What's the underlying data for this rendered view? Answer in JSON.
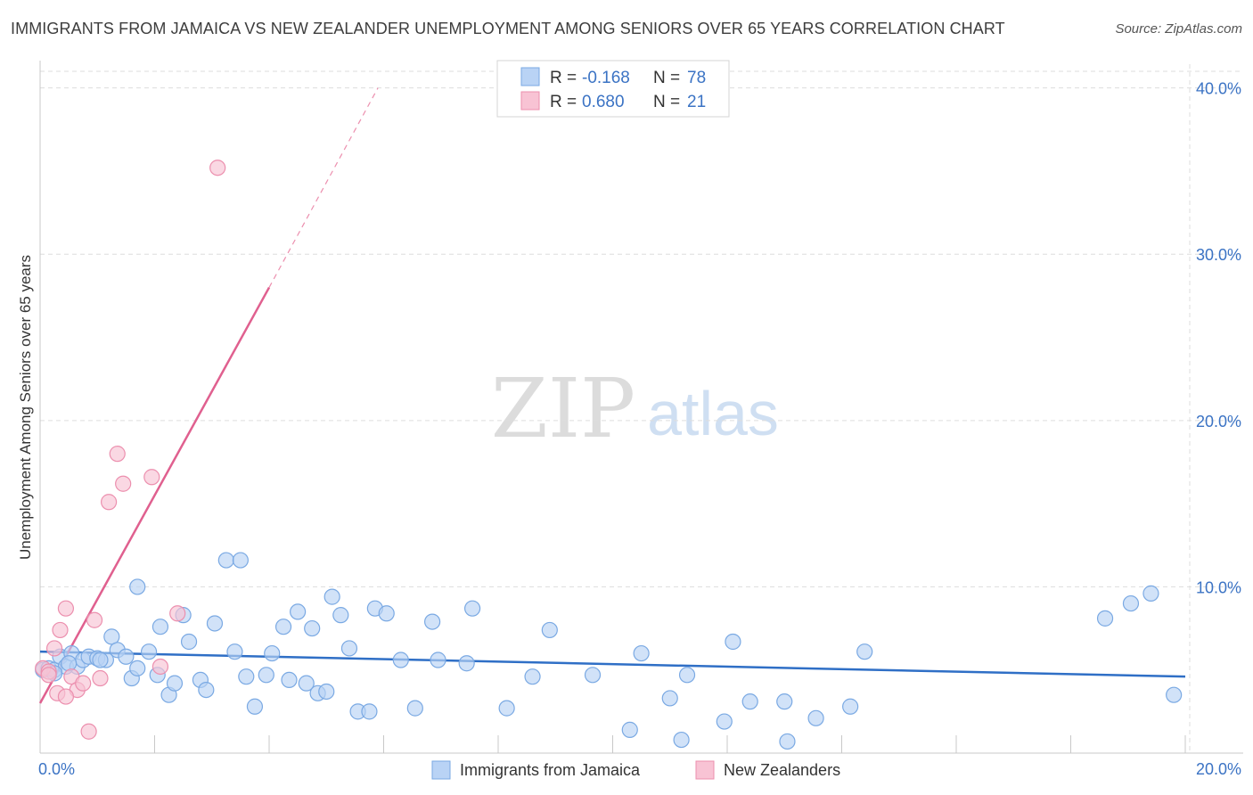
{
  "title": "IMMIGRANTS FROM JAMAICA VS NEW ZEALANDER UNEMPLOYMENT AMONG SENIORS OVER 65 YEARS CORRELATION CHART",
  "source": "Source: ZipAtlas.com",
  "watermark": {
    "zip": "ZIP",
    "atlas": "atlas"
  },
  "colors": {
    "blue_fill": "#b9d3f5",
    "blue_stroke": "#7aa9e3",
    "blue_line": "#2f6fc6",
    "pink_fill": "#f8c3d4",
    "pink_stroke": "#ec8fae",
    "pink_line": "#e0608f",
    "grid": "#dddddd",
    "accent_text": "#3b73c4"
  },
  "legend": {
    "rows": [
      {
        "r_label": "R =",
        "r_value": "-0.168",
        "n_label": "N =",
        "n_value": "78"
      },
      {
        "r_label": "R =",
        "r_value": "0.680",
        "n_label": "N =",
        "n_value": "21"
      }
    ]
  },
  "chart_data": {
    "type": "scatter",
    "title": "IMMIGRANTS FROM JAMAICA VS NEW ZEALANDER UNEMPLOYMENT AMONG SENIORS OVER 65 YEARS CORRELATION CHART",
    "xlabel": "",
    "ylabel": "Unemployment Among Seniors over 65 years",
    "xlim": [
      0,
      20
    ],
    "ylim": [
      0,
      41
    ],
    "x_tick_labels": [
      "0.0%",
      "20.0%"
    ],
    "y_ticks": [
      10,
      20,
      30,
      40
    ],
    "y_tick_labels": [
      "10.0%",
      "20.0%",
      "30.0%",
      "40.0%"
    ],
    "grid": true,
    "series": [
      {
        "name": "Immigrants from Jamaica",
        "color": "blue",
        "trend": {
          "x0": 0.0,
          "y0": 6.1,
          "x1": 20.0,
          "y1": 4.6
        },
        "points": [
          [
            0.05,
            5.0
          ],
          [
            0.15,
            5.1
          ],
          [
            0.25,
            5.0
          ],
          [
            0.35,
            5.8
          ],
          [
            0.45,
            5.2
          ],
          [
            0.55,
            6.0
          ],
          [
            0.65,
            5.2
          ],
          [
            0.75,
            5.6
          ],
          [
            0.85,
            5.8
          ],
          [
            1.0,
            5.7
          ],
          [
            1.15,
            5.6
          ],
          [
            1.25,
            7.0
          ],
          [
            1.35,
            6.2
          ],
          [
            1.5,
            5.8
          ],
          [
            1.6,
            4.5
          ],
          [
            1.7,
            5.1
          ],
          [
            1.7,
            10.0
          ],
          [
            1.9,
            6.1
          ],
          [
            2.05,
            4.7
          ],
          [
            2.1,
            7.6
          ],
          [
            2.25,
            3.5
          ],
          [
            2.35,
            4.2
          ],
          [
            2.5,
            8.3
          ],
          [
            2.6,
            6.7
          ],
          [
            2.8,
            4.4
          ],
          [
            2.9,
            3.8
          ],
          [
            3.05,
            7.8
          ],
          [
            3.25,
            11.6
          ],
          [
            3.5,
            11.6
          ],
          [
            3.4,
            6.1
          ],
          [
            3.6,
            4.6
          ],
          [
            3.75,
            2.8
          ],
          [
            3.95,
            4.7
          ],
          [
            4.05,
            6.0
          ],
          [
            4.25,
            7.6
          ],
          [
            4.35,
            4.4
          ],
          [
            4.5,
            8.5
          ],
          [
            4.65,
            4.2
          ],
          [
            4.75,
            7.5
          ],
          [
            4.85,
            3.6
          ],
          [
            5.0,
            3.7
          ],
          [
            5.1,
            9.4
          ],
          [
            5.25,
            8.3
          ],
          [
            5.4,
            6.3
          ],
          [
            5.55,
            2.5
          ],
          [
            5.75,
            2.5
          ],
          [
            5.85,
            8.7
          ],
          [
            6.05,
            8.4
          ],
          [
            6.3,
            5.6
          ],
          [
            6.55,
            2.7
          ],
          [
            6.85,
            7.9
          ],
          [
            6.95,
            5.6
          ],
          [
            7.45,
            5.4
          ],
          [
            7.55,
            8.7
          ],
          [
            8.15,
            2.7
          ],
          [
            8.6,
            4.6
          ],
          [
            8.9,
            7.4
          ],
          [
            9.65,
            4.7
          ],
          [
            10.3,
            1.4
          ],
          [
            10.5,
            6.0
          ],
          [
            11.0,
            3.3
          ],
          [
            11.2,
            0.8
          ],
          [
            11.3,
            4.7
          ],
          [
            11.95,
            1.9
          ],
          [
            12.1,
            6.7
          ],
          [
            12.4,
            3.1
          ],
          [
            13.05,
            0.7
          ],
          [
            13.0,
            3.1
          ],
          [
            13.55,
            2.1
          ],
          [
            14.15,
            2.8
          ],
          [
            14.4,
            6.1
          ],
          [
            18.6,
            8.1
          ],
          [
            19.05,
            9.0
          ],
          [
            19.4,
            9.6
          ],
          [
            19.8,
            3.5
          ],
          [
            0.25,
            4.8
          ],
          [
            0.5,
            5.4
          ],
          [
            1.05,
            5.6
          ]
        ]
      },
      {
        "name": "New Zealanders",
        "color": "pink",
        "trend": {
          "x0": 0.0,
          "y0": 3.0,
          "x1": 4.0,
          "y1": 28.0,
          "dash_to": {
            "x": 5.9,
            "y": 40.0
          }
        },
        "points": [
          [
            0.05,
            5.1
          ],
          [
            0.15,
            4.9
          ],
          [
            0.25,
            6.3
          ],
          [
            0.35,
            7.4
          ],
          [
            0.45,
            8.7
          ],
          [
            0.55,
            4.6
          ],
          [
            0.65,
            3.8
          ],
          [
            0.75,
            4.2
          ],
          [
            0.85,
            1.3
          ],
          [
            0.95,
            8.0
          ],
          [
            1.05,
            4.5
          ],
          [
            1.2,
            15.1
          ],
          [
            1.35,
            18.0
          ],
          [
            1.45,
            16.2
          ],
          [
            1.95,
            16.6
          ],
          [
            2.1,
            5.2
          ],
          [
            2.4,
            8.4
          ],
          [
            3.1,
            35.2
          ],
          [
            0.3,
            3.6
          ],
          [
            0.45,
            3.4
          ],
          [
            0.15,
            4.7
          ]
        ]
      }
    ]
  },
  "bottom_legend": [
    "Immigrants from Jamaica",
    "New Zealanders"
  ]
}
